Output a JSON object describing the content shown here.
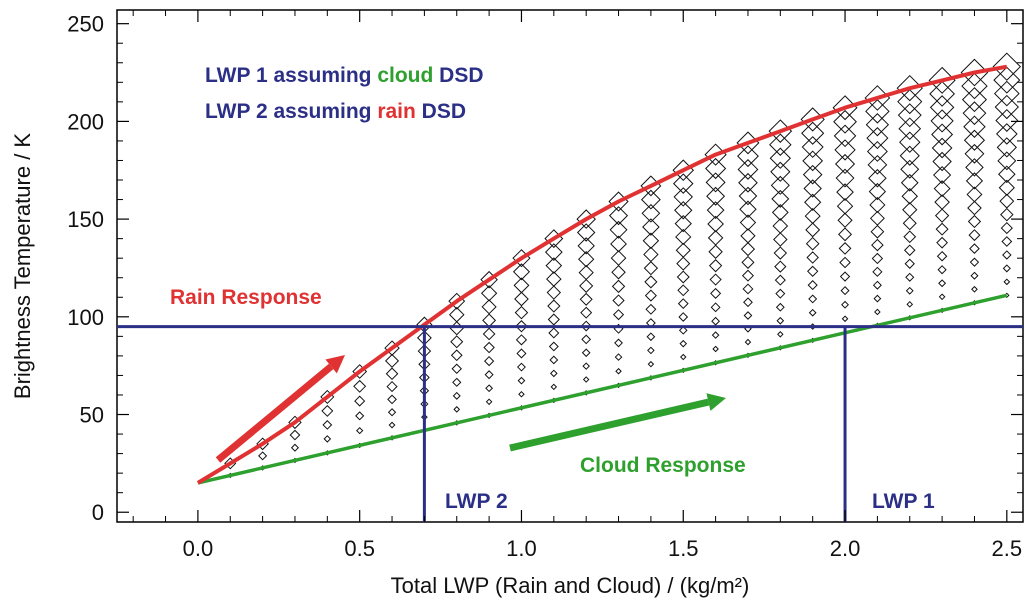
{
  "chart_data": {
    "type": "scatter",
    "title": "",
    "xlabel": "Total LWP (Rain and Cloud) / (kg/m²)",
    "ylabel": "Brightness Temperature / K",
    "xlim": [
      -0.25,
      2.55
    ],
    "ylim": [
      -5,
      257
    ],
    "x_ticks": [
      0.0,
      0.5,
      1.0,
      1.5,
      2.0,
      2.5
    ],
    "x_tick_labels": [
      "0.0",
      "0.5",
      "1.0",
      "1.5",
      "2.0",
      "2.5"
    ],
    "y_ticks": [
      0,
      50,
      100,
      150,
      200,
      250
    ],
    "y_tick_labels": [
      "0",
      "50",
      "100",
      "150",
      "200",
      "250"
    ],
    "grid": false,
    "series": [
      {
        "name": "Rain Response",
        "color": "#e03232",
        "x": [
          0.0,
          0.1,
          0.2,
          0.3,
          0.4,
          0.5,
          0.6,
          0.7,
          0.8,
          0.9,
          1.0,
          1.1,
          1.2,
          1.3,
          1.4,
          1.5,
          1.6,
          1.7,
          1.8,
          1.9,
          2.0,
          2.1,
          2.2,
          2.3,
          2.4,
          2.5
        ],
        "y": [
          15,
          25,
          35,
          46,
          59,
          72,
          84,
          96,
          108,
          119,
          130,
          140,
          150,
          159,
          167,
          175,
          183,
          189,
          195,
          201,
          207,
          212,
          217,
          221,
          225,
          228
        ]
      },
      {
        "name": "Cloud Response",
        "color": "#2ea02e",
        "x": [
          0.0,
          2.5
        ],
        "y": [
          15,
          111
        ]
      }
    ],
    "annotations": {
      "legend_line1": {
        "prefix": "LWP 1 assuming ",
        "word": "cloud",
        "suffix": " DSD",
        "word_color": "#2ea02e"
      },
      "legend_line2": {
        "prefix": "LWP 2 assuming ",
        "word": "rain",
        "suffix": " DSD",
        "word_color": "#e03232"
      },
      "rain_label": "Rain Response",
      "cloud_label": "Cloud Response",
      "lwp1_label": "LWP 1",
      "lwp2_label": "LWP 2",
      "reference_tb": 95,
      "lwp1_value": 2.0,
      "lwp2_value": 0.7
    },
    "colors": {
      "navy": "#2b2f86",
      "axis": "#000000"
    }
  }
}
